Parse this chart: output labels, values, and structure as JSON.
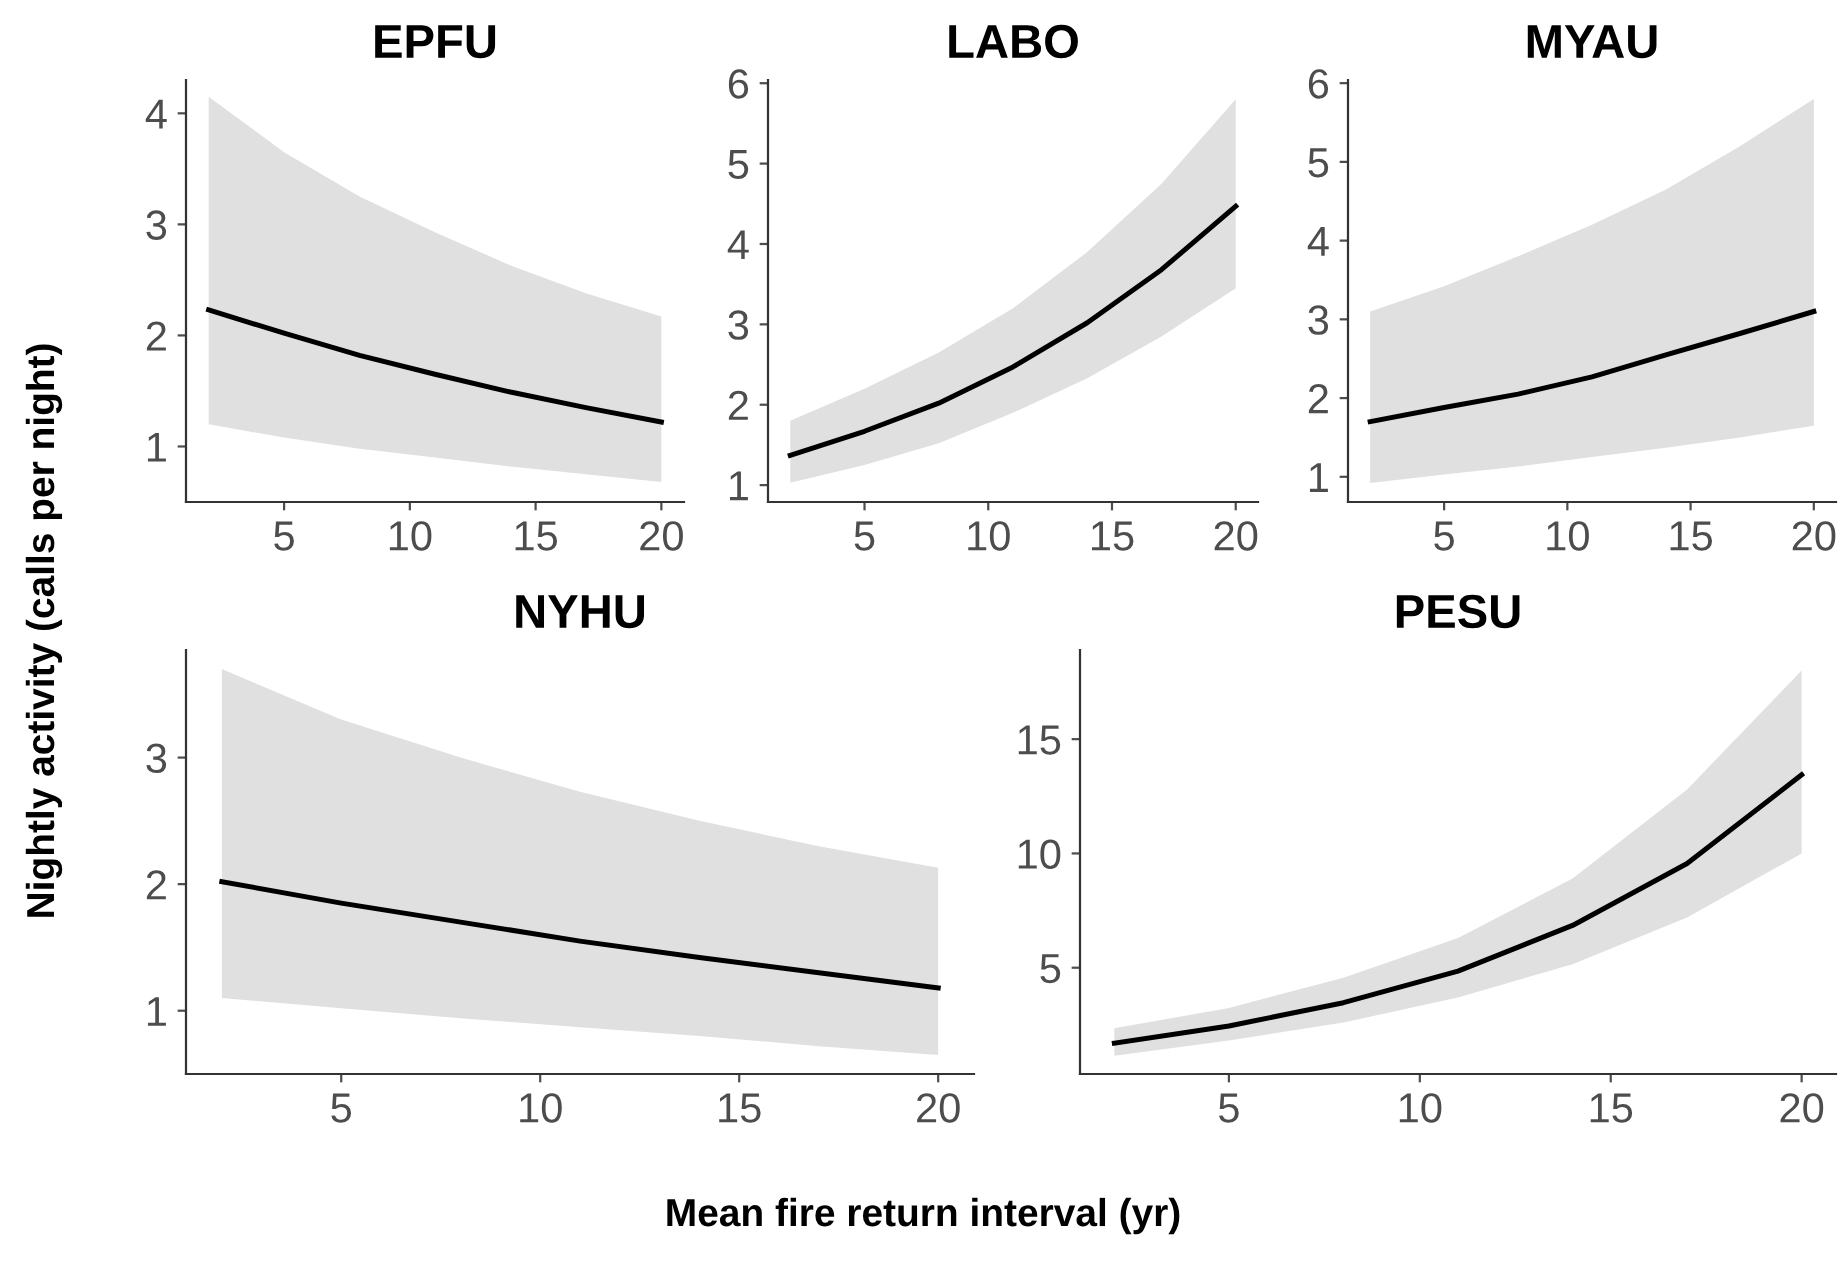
{
  "chart_data": [
    {
      "type": "line",
      "title": "EPFU",
      "ylabel": "Nightly activity (calls per night)",
      "x": [
        2,
        5,
        8,
        11,
        14,
        17,
        20
      ],
      "xlim": [
        1.1,
        20.9
      ],
      "xticks": [
        5,
        10,
        15,
        20
      ],
      "ylim": [
        0.5,
        4.3
      ],
      "yticks": [
        1,
        2,
        3,
        4
      ],
      "grid": false,
      "series": [
        {
          "color": "#000000",
          "values": [
            2.23,
            2.02,
            1.82,
            1.65,
            1.49,
            1.35,
            1.22
          ],
          "lower": [
            1.2,
            1.08,
            0.98,
            0.9,
            0.82,
            0.75,
            0.68
          ],
          "upper": [
            4.15,
            3.65,
            3.25,
            2.93,
            2.63,
            2.38,
            2.17
          ]
        }
      ]
    },
    {
      "type": "line",
      "title": "LABO",
      "x": [
        2,
        5,
        8,
        11,
        14,
        17,
        20
      ],
      "xlim": [
        1.1,
        20.9
      ],
      "xticks": [
        5,
        10,
        15,
        20
      ],
      "ylim": [
        0.79,
        6.04
      ],
      "yticks": [
        1,
        2,
        3,
        4,
        5,
        6
      ],
      "grid": false,
      "series": [
        {
          "color": "#000000",
          "values": [
            1.37,
            1.67,
            2.02,
            2.47,
            3.02,
            3.68,
            4.47
          ],
          "lower": [
            1.03,
            1.25,
            1.52,
            1.9,
            2.33,
            2.85,
            3.45
          ],
          "upper": [
            1.8,
            2.2,
            2.65,
            3.2,
            3.9,
            4.75,
            5.8
          ]
        }
      ]
    },
    {
      "type": "line",
      "title": "MYAU",
      "x": [
        2,
        5,
        8,
        11,
        14,
        17,
        20
      ],
      "xlim": [
        1.1,
        20.9
      ],
      "xticks": [
        5,
        10,
        15,
        20
      ],
      "ylim": [
        0.68,
        6.04
      ],
      "yticks": [
        1,
        2,
        3,
        4,
        5,
        6
      ],
      "grid": false,
      "series": [
        {
          "color": "#000000",
          "values": [
            1.7,
            1.88,
            2.05,
            2.27,
            2.55,
            2.82,
            3.1
          ],
          "lower": [
            0.92,
            1.03,
            1.13,
            1.25,
            1.37,
            1.5,
            1.65
          ],
          "upper": [
            3.1,
            3.42,
            3.8,
            4.2,
            4.65,
            5.2,
            5.8
          ]
        }
      ]
    },
    {
      "type": "line",
      "title": "NYHU",
      "x": [
        2,
        5,
        8,
        11,
        14,
        17,
        20
      ],
      "xlim": [
        1.1,
        20.9
      ],
      "xticks": [
        5,
        10,
        15,
        20
      ],
      "ylim": [
        0.5,
        3.85
      ],
      "yticks": [
        1,
        2,
        3
      ],
      "grid": false,
      "series": [
        {
          "color": "#000000",
          "values": [
            2.02,
            1.85,
            1.7,
            1.55,
            1.42,
            1.3,
            1.18
          ],
          "lower": [
            1.1,
            1.02,
            0.94,
            0.87,
            0.8,
            0.72,
            0.65
          ],
          "upper": [
            3.7,
            3.3,
            3.0,
            2.73,
            2.5,
            2.3,
            2.13
          ]
        }
      ]
    },
    {
      "type": "line",
      "title": "PESU",
      "xlabel": "Mean fire return interval (yr)",
      "x": [
        2,
        5,
        8,
        11,
        14,
        17,
        20
      ],
      "xlim": [
        1.1,
        20.9
      ],
      "xticks": [
        5,
        10,
        15,
        20
      ],
      "ylim": [
        0.35,
        18.9
      ],
      "yticks": [
        5,
        10,
        15
      ],
      "grid": false,
      "series": [
        {
          "color": "#000000",
          "values": [
            1.7,
            2.45,
            3.47,
            4.85,
            6.85,
            9.56,
            13.44
          ],
          "lower": [
            1.15,
            1.82,
            2.6,
            3.7,
            5.15,
            7.2,
            10.0
          ],
          "upper": [
            2.35,
            3.24,
            4.56,
            6.3,
            8.9,
            12.8,
            18.0
          ]
        }
      ]
    }
  ]
}
